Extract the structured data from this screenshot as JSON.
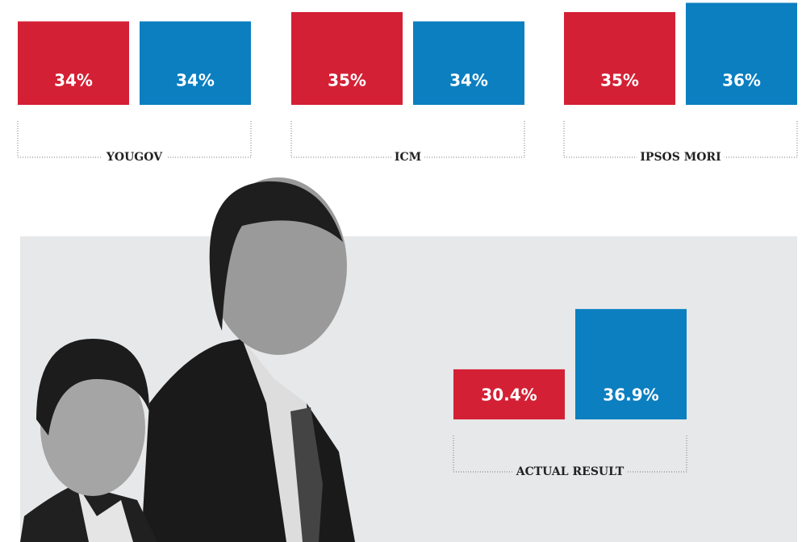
{
  "chart_data": [
    {
      "type": "bar",
      "title": "YOUGOV",
      "categories": [
        null,
        null
      ],
      "values": [
        34,
        34
      ],
      "value_labels": [
        "34%",
        "34%"
      ],
      "colors": [
        "#d42035",
        "#0b7fc0"
      ],
      "ylim": [
        25,
        37
      ]
    },
    {
      "type": "bar",
      "title": "ICM",
      "categories": [
        null,
        null
      ],
      "values": [
        35,
        34
      ],
      "value_labels": [
        "35%",
        "34%"
      ],
      "colors": [
        "#d42035",
        "#0b7fc0"
      ],
      "ylim": [
        25,
        37
      ]
    },
    {
      "type": "bar",
      "title": "IPSOS MORI",
      "categories": [
        null,
        null
      ],
      "values": [
        35,
        36
      ],
      "value_labels": [
        "35%",
        "36%"
      ],
      "colors": [
        "#d42035",
        "#0b7fc0"
      ],
      "ylim": [
        25,
        37
      ]
    },
    {
      "type": "bar",
      "title": "ACTUAL RESULT",
      "categories": [
        null,
        null
      ],
      "values": [
        30.4,
        36.9
      ],
      "value_labels": [
        "30.4%",
        "36.9%"
      ],
      "colors": [
        "#d42035",
        "#0b7fc0"
      ],
      "ylim": [
        25,
        37
      ]
    }
  ]
}
